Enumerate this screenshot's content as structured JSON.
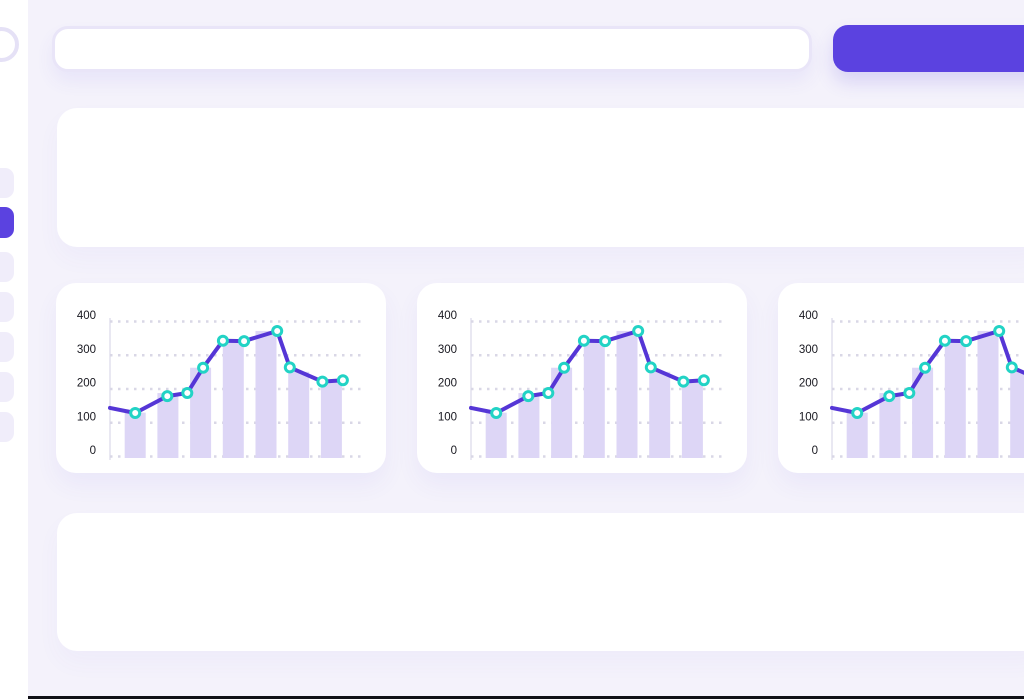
{
  "app": {
    "background": "#f4f2fb",
    "surface": "#ffffff",
    "accent": "#5b42e0",
    "line_purple": "#5536d6",
    "dot_teal": "#22d3c5",
    "bar_lavender": "#ddd6f6",
    "grid_color": "#d9d7e6",
    "axis_color": "#e9e8f2",
    "label_color": "#17171f",
    "bottom_line_color": "#101016"
  },
  "sidebar": {
    "logo": "ring",
    "items": [
      {
        "name": "item-1",
        "active": false
      },
      {
        "name": "item-2",
        "active": true
      },
      {
        "name": "item-3",
        "active": false
      },
      {
        "name": "item-4",
        "active": false
      },
      {
        "name": "item-5",
        "active": false
      },
      {
        "name": "item-6",
        "active": false
      },
      {
        "name": "item-7",
        "active": false
      }
    ]
  },
  "topbar": {
    "search_value": "",
    "search_placeholder": "",
    "button_label": ""
  },
  "panels": {
    "top": {
      "content": ""
    },
    "bottom": {
      "content": ""
    }
  },
  "chart_data": {
    "type": "bar+line",
    "title": "",
    "xlabel": "",
    "ylabel": "",
    "ylim": [
      0,
      400
    ],
    "yticks": [
      400,
      300,
      200,
      100,
      0
    ],
    "grid": "horizontal dotted",
    "legend": "none",
    "instances": 3,
    "bars": {
      "color": "#ddd6f6",
      "values": [
        130,
        188,
        263,
        345,
        372,
        251,
        226
      ]
    },
    "line": {
      "color": "#5536d6",
      "marker": {
        "fill": "#ffffff",
        "stroke": "#22d3c5"
      },
      "points": [
        {
          "x": 0.0,
          "v": 144,
          "dot": false
        },
        {
          "x": 0.102,
          "v": 129,
          "dot": true
        },
        {
          "x": 0.232,
          "v": 179,
          "dot": true
        },
        {
          "x": 0.313,
          "v": 188,
          "dot": true
        },
        {
          "x": 0.377,
          "v": 263,
          "dot": true
        },
        {
          "x": 0.457,
          "v": 343,
          "dot": true
        },
        {
          "x": 0.543,
          "v": 342,
          "dot": true
        },
        {
          "x": 0.677,
          "v": 372,
          "dot": true
        },
        {
          "x": 0.728,
          "v": 264,
          "dot": true
        },
        {
          "x": 0.86,
          "v": 222,
          "dot": true
        },
        {
          "x": 0.943,
          "v": 226,
          "dot": true
        }
      ]
    }
  }
}
